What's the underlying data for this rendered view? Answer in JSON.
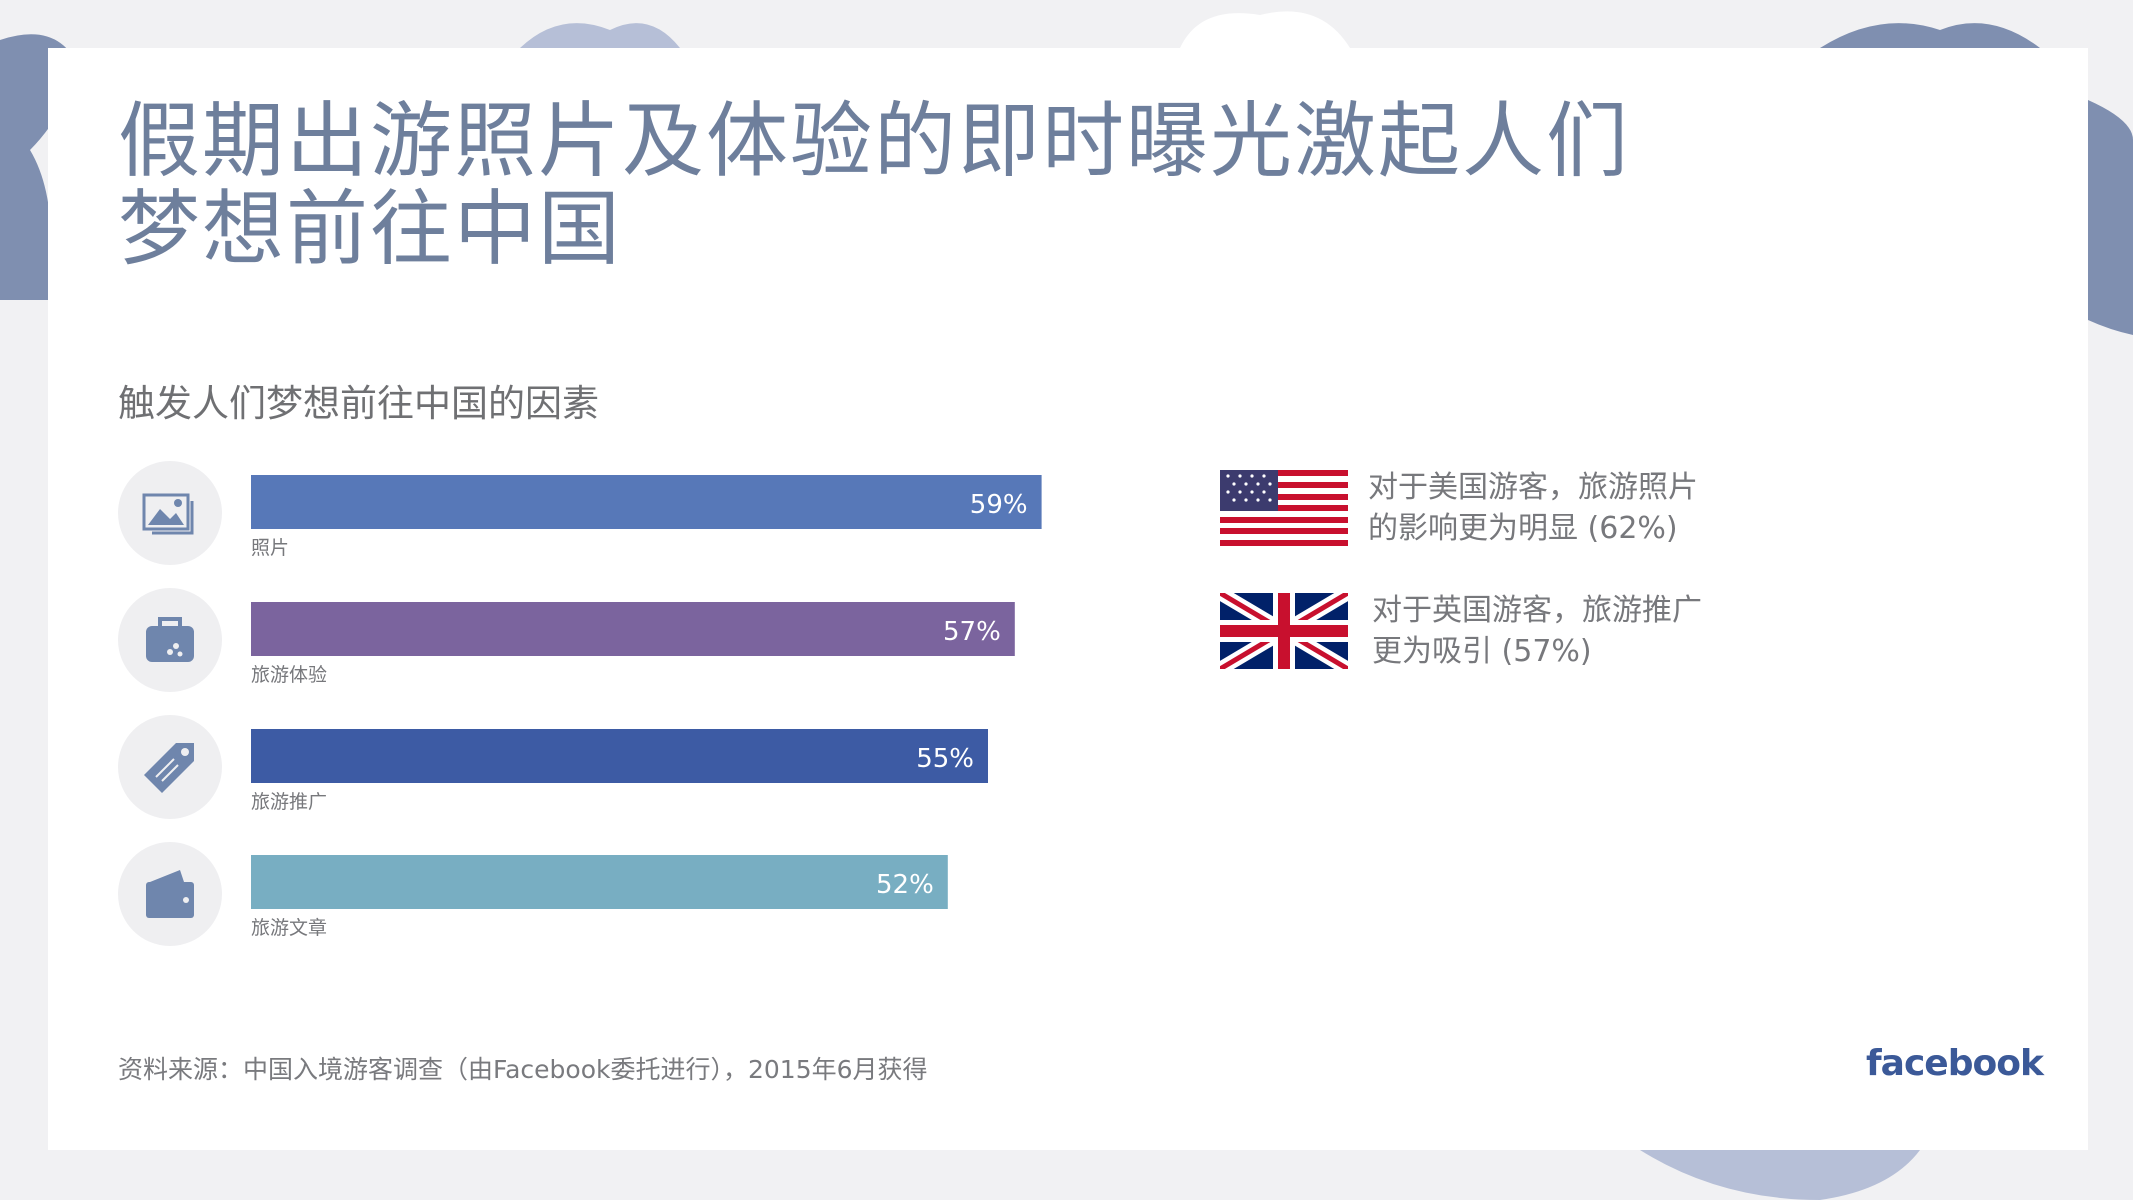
{
  "title_lines": [
    "假期出游照片及体验的即时曝光激起人们",
    "梦想前往中国"
  ],
  "chart_data": {
    "type": "bar",
    "orientation": "horizontal",
    "title": "触发人们梦想前往中国的因素",
    "categories": [
      "照片",
      "旅游体验",
      "旅游推广",
      "旅游文章"
    ],
    "values": [
      59,
      57,
      55,
      52
    ],
    "value_labels": [
      "59%",
      "57%",
      "55%",
      "52%"
    ],
    "colors": [
      "#5778b8",
      "#7b649e",
      "#3d5ba4",
      "#78aec2"
    ],
    "icons": [
      "photo-icon",
      "suitcase-icon",
      "tag-icon",
      "wallet-icon"
    ],
    "xlim": [
      0,
      100
    ],
    "grid": false
  },
  "notes": [
    {
      "flag": "us-flag-icon",
      "lines": [
        "对于美国游客，旅游照片",
        "的影响更为明显 (62%)"
      ]
    },
    {
      "flag": "uk-flag-icon",
      "lines": [
        "对于英国游客，旅游推广",
        "更为吸引 (57%)"
      ]
    }
  ],
  "source": "资料来源：中国入境游客调查（由Facebook委托进行），2015年6月获得",
  "brand": "facebook",
  "colors": {
    "title": "#6e7f9c",
    "accent": "#3b5998",
    "decor": "#7f8fb0"
  }
}
